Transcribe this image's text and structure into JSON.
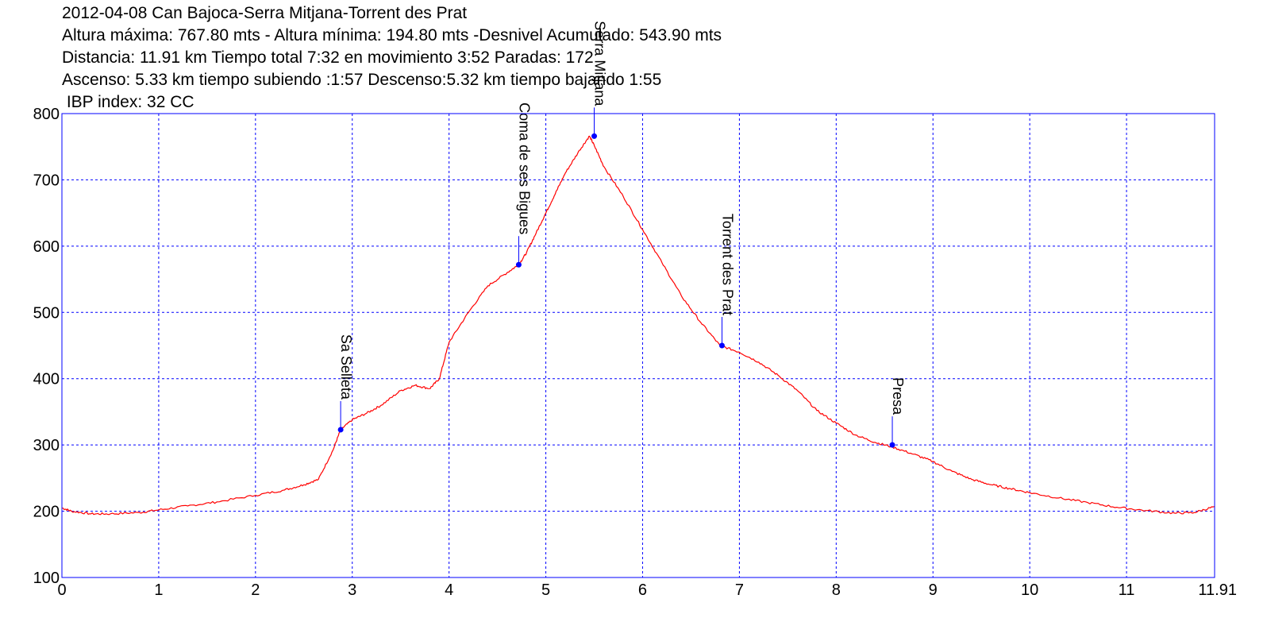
{
  "header": {
    "lines": [
      "2012-04-08 Can Bajoca-Serra Mitjana-Torrent des Prat",
      "Altura máxima: 767.80 mts - Altura mínima: 194.80 mts -Desnivel Acumulado: 543.90 mts",
      "Distancia: 11.91 km  Tiempo total 7:32  en movimiento 3:52 Paradas: 172",
      "Ascenso: 5.33 km  tiempo subiendo :1:57  Descenso:5.32 km tiempo bajando 1:55",
      " IBP index: 32 CC"
    ]
  },
  "chart_data": {
    "type": "line",
    "title": "",
    "xlabel": "",
    "ylabel": "",
    "xlim": [
      0,
      11.91
    ],
    "ylim": [
      100,
      800
    ],
    "x_ticks": [
      "0",
      "1",
      "2",
      "3",
      "4",
      "5",
      "6",
      "7",
      "8",
      "9",
      "10",
      "11",
      "11.91"
    ],
    "y_ticks": [
      "100",
      "200",
      "300",
      "400",
      "500",
      "600",
      "700",
      "800"
    ],
    "grid": true,
    "colors": {
      "line": "#ff0000",
      "grid": "#0000ff",
      "frame": "#0000ff",
      "waypoint": "#0000ff"
    },
    "series": [
      {
        "x": [
          0,
          0.1,
          0.3,
          0.5,
          0.8,
          1.0,
          1.3,
          1.6,
          2.0,
          2.3,
          2.5,
          2.65,
          2.8,
          2.88,
          3.0,
          3.15,
          3.3,
          3.5,
          3.65,
          3.8,
          3.9,
          4.0,
          4.2,
          4.4,
          4.6,
          4.72,
          4.8,
          4.9,
          5.0,
          5.1,
          5.2,
          5.35,
          5.45,
          5.5,
          5.6,
          5.8,
          6.0,
          6.2,
          6.4,
          6.6,
          6.8,
          7.0,
          7.2,
          7.4,
          7.6,
          7.8,
          8.0,
          8.2,
          8.4,
          8.58,
          8.8,
          9.0,
          9.2,
          9.4,
          9.6,
          9.8,
          10.0,
          10.3,
          10.6,
          10.9,
          11.2,
          11.5,
          11.7,
          11.91
        ],
        "y": [
          205,
          200,
          196,
          196,
          198,
          202,
          208,
          214,
          224,
          232,
          240,
          248,
          292,
          323,
          338,
          348,
          360,
          382,
          390,
          385,
          400,
          455,
          500,
          540,
          560,
          572,
          590,
          620,
          650,
          680,
          710,
          745,
          766,
          752,
          720,
          675,
          625,
          575,
          525,
          485,
          450,
          440,
          425,
          405,
          382,
          352,
          333,
          315,
          304,
          297,
          286,
          275,
          260,
          248,
          240,
          234,
          228,
          220,
          213,
          206,
          201,
          197,
          198,
          207
        ]
      }
    ],
    "waypoints": [
      {
        "name": "Sa Selleta",
        "x": 2.88,
        "y": 323
      },
      {
        "name": "Coma de ses Bigues",
        "x": 4.72,
        "y": 572
      },
      {
        "name": "Serra Mitjana",
        "x": 5.5,
        "y": 766
      },
      {
        "name": "Torrent des Prat",
        "x": 6.82,
        "y": 450
      },
      {
        "name": "Presa",
        "x": 8.58,
        "y": 300
      }
    ]
  }
}
